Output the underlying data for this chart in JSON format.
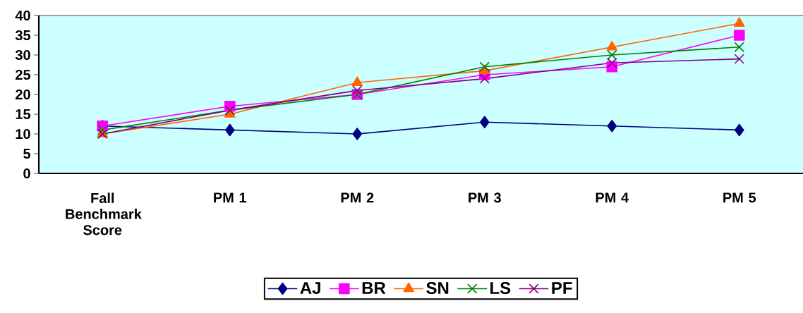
{
  "chart_data": {
    "type": "line",
    "categories": [
      "Fall Benchmark Score",
      "PM 1",
      "PM 2",
      "PM 3",
      "PM 4",
      "PM 5"
    ],
    "series": [
      {
        "name": "AJ",
        "color": "#000080",
        "marker": "diamond",
        "values": [
          12,
          11,
          10,
          13,
          12,
          11
        ]
      },
      {
        "name": "BR",
        "color": "#ff00ff",
        "marker": "square",
        "values": [
          12,
          17,
          20,
          25,
          27,
          35
        ]
      },
      {
        "name": "SN",
        "color": "#ff6600",
        "marker": "triangle",
        "values": [
          10,
          15,
          23,
          26,
          32,
          38
        ]
      },
      {
        "name": "LS",
        "color": "#008000",
        "marker": "cross",
        "values": [
          11,
          16,
          20,
          27,
          30,
          32
        ]
      },
      {
        "name": "PF",
        "color": "#800080",
        "marker": "cross",
        "values": [
          10,
          16,
          21,
          24,
          28,
          29
        ]
      }
    ],
    "ylim": [
      0,
      40
    ],
    "yticks": [
      0,
      5,
      10,
      15,
      20,
      25,
      30,
      35,
      40
    ],
    "legend": "bottom",
    "line_style": "solid"
  }
}
